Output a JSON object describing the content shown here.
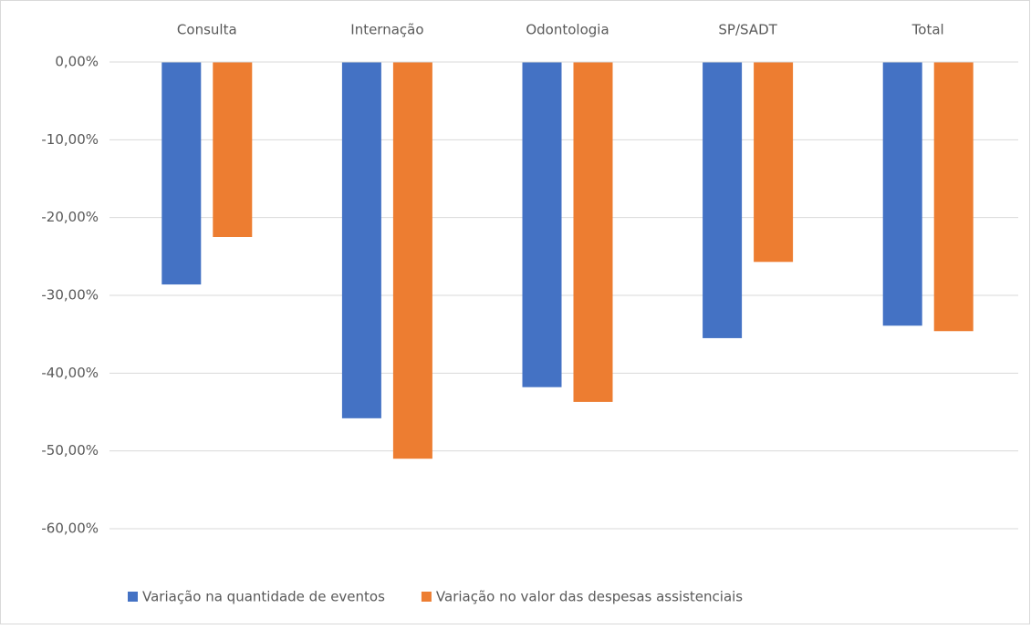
{
  "chart_data": {
    "type": "bar",
    "categories": [
      "Consulta",
      "Internação",
      "Odontologia",
      "SP/SADT",
      "Total"
    ],
    "series": [
      {
        "name": "Variação na quantidade de eventos",
        "color": "#4472c4",
        "values": [
          -28.6,
          -45.8,
          -41.8,
          -35.5,
          -33.9
        ]
      },
      {
        "name": "Variação no valor das despesas assistenciais",
        "color": "#ed7d31",
        "values": [
          -22.5,
          -51.0,
          -43.7,
          -25.7,
          -34.6
        ]
      }
    ],
    "ylim": [
      -60,
      0
    ],
    "yticks": [
      {
        "value": 0,
        "label": "0,00%"
      },
      {
        "value": -10,
        "label": "-10,00%"
      },
      {
        "value": -20,
        "label": "-20,00%"
      },
      {
        "value": -30,
        "label": "-30,00%"
      },
      {
        "value": -40,
        "label": "-40,00%"
      },
      {
        "value": -50,
        "label": "-50,00%"
      },
      {
        "value": -60,
        "label": "-60,00%"
      }
    ],
    "grid": true,
    "legend": "bottom"
  }
}
